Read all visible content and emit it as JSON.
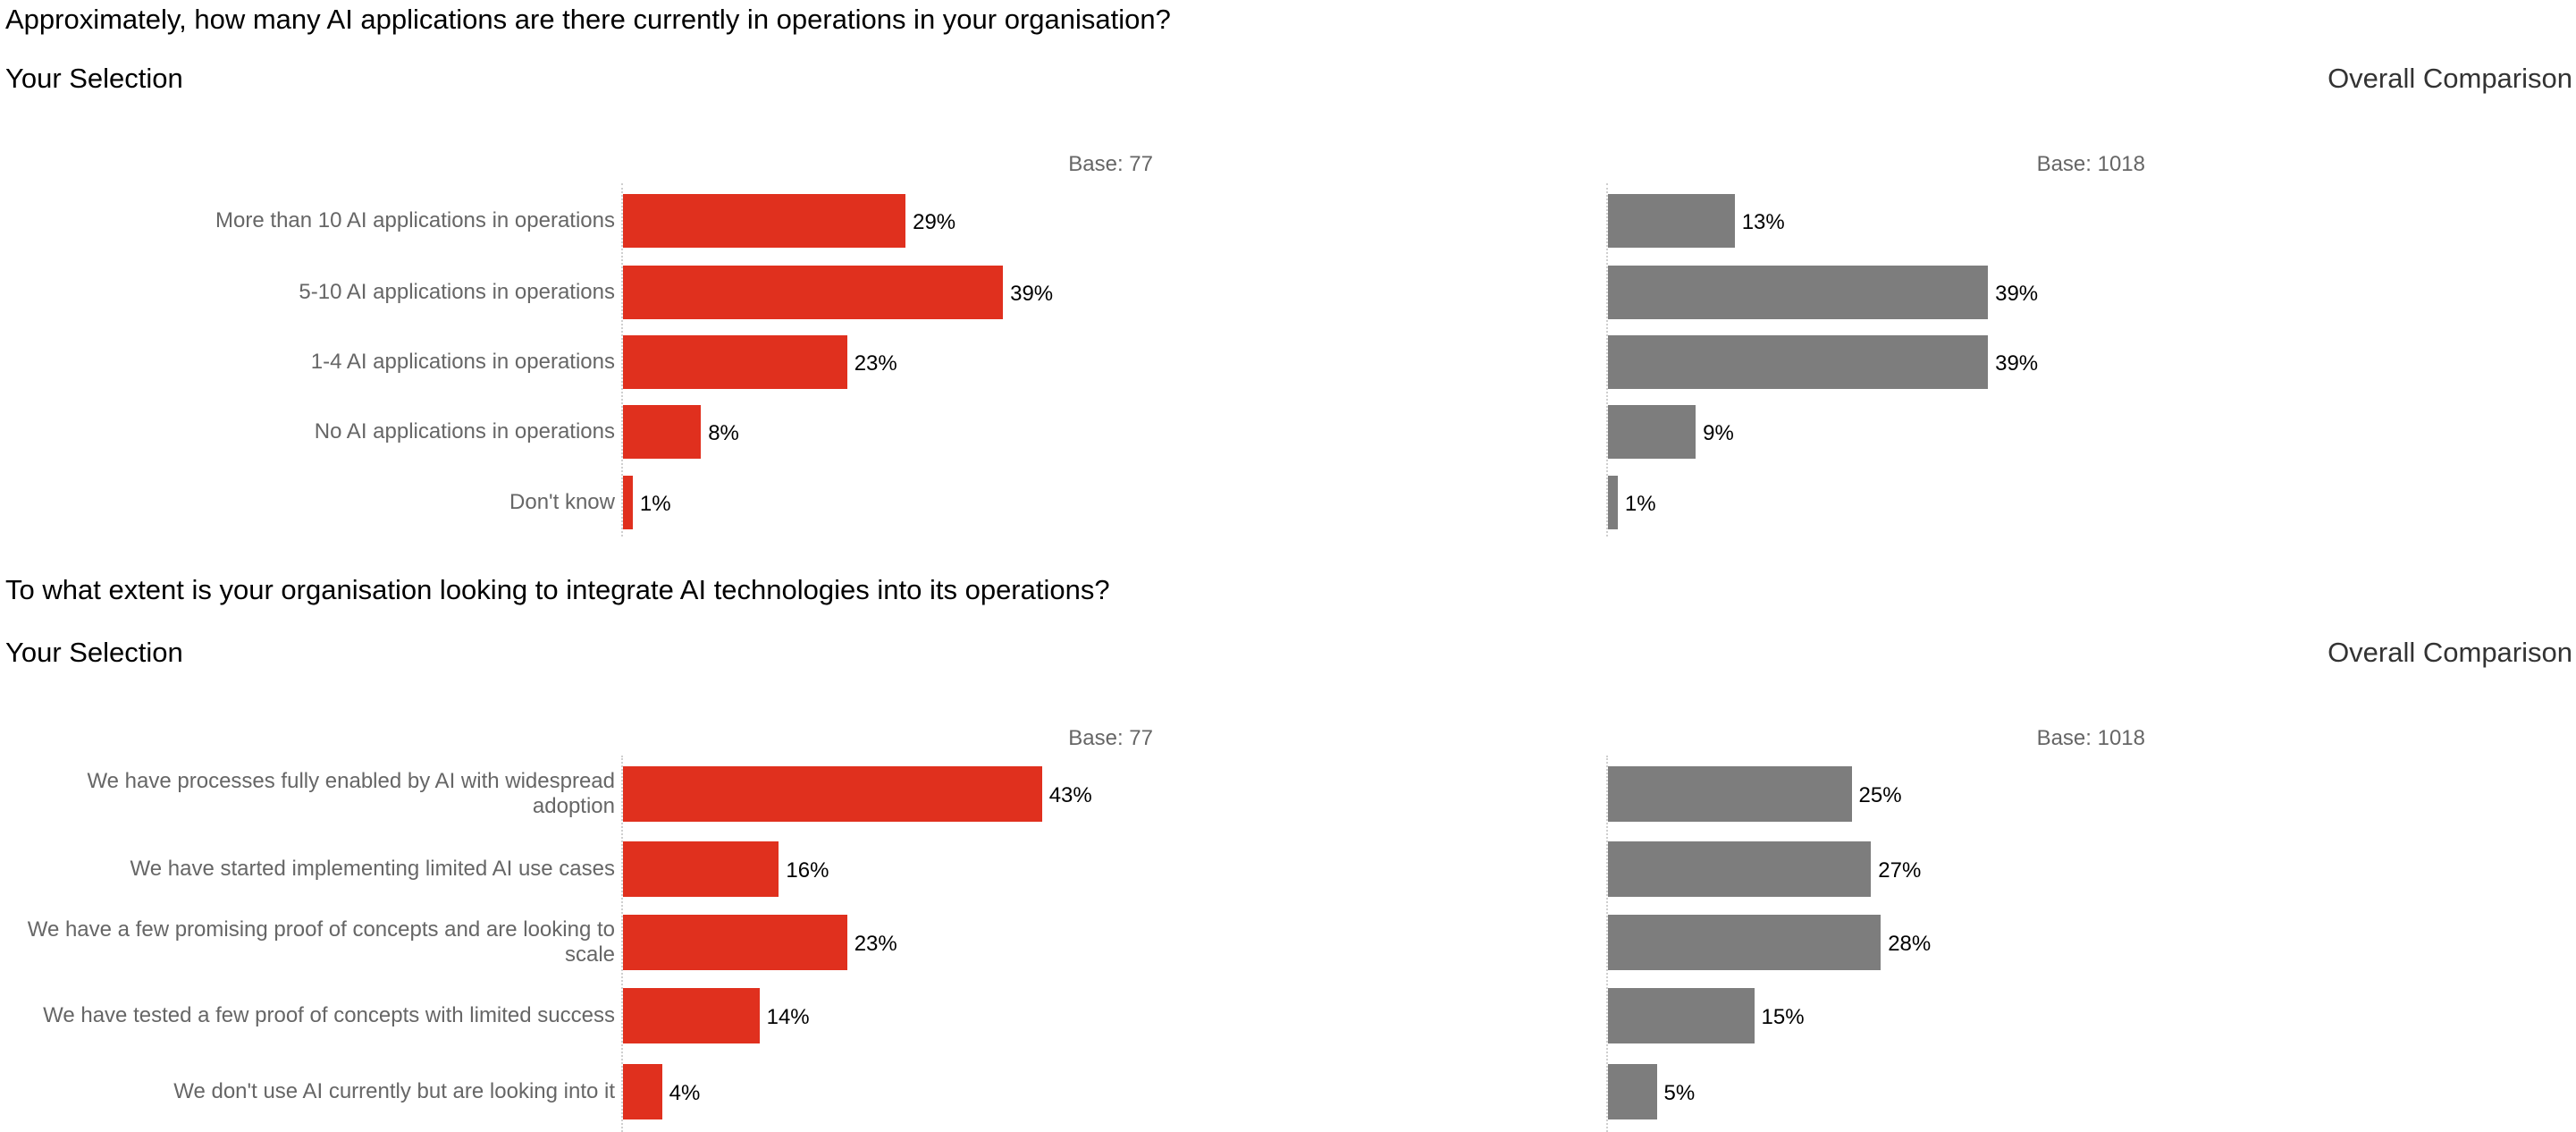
{
  "colors": {
    "selection": "#e0301e",
    "comparison": "#7d7d7d"
  },
  "chart_data": [
    {
      "type": "bar",
      "orientation": "horizontal",
      "title": "Approximately, how many AI applications are there currently in operations in your organisation?",
      "panel_titles": {
        "selection": "Your Selection",
        "comparison": "Overall Comparison"
      },
      "base": {
        "selection": "Base: 77",
        "comparison": "Base: 1018"
      },
      "categories": [
        "More than 10 AI applications in operations",
        "5-10 AI applications in operations",
        "1-4 AI applications in operations",
        "No AI applications in operations",
        "Don't know"
      ],
      "series": [
        {
          "name": "Your Selection",
          "values": [
            29,
            39,
            23,
            8,
            1
          ],
          "labels": [
            "29%",
            "39%",
            "23%",
            "8%",
            "1%"
          ]
        },
        {
          "name": "Overall Comparison",
          "values": [
            13,
            39,
            39,
            9,
            1
          ],
          "labels": [
            "13%",
            "39%",
            "39%",
            "9%",
            "1%"
          ]
        }
      ],
      "unit": "%",
      "xlim": [
        0,
        50
      ],
      "grid": false
    },
    {
      "type": "bar",
      "orientation": "horizontal",
      "title": "To what extent is your organisation looking to integrate AI technologies into its operations?",
      "panel_titles": {
        "selection": "Your Selection",
        "comparison": "Overall Comparison"
      },
      "base": {
        "selection": "Base: 77",
        "comparison": "Base: 1018"
      },
      "categories": [
        "We have processes fully enabled by AI with widespread adoption",
        "We have started implementing limited AI use cases",
        "We have a few promising proof of concepts and are looking to scale",
        "We have tested a few proof of concepts with limited success",
        "We don't use AI currently but are looking into it"
      ],
      "series": [
        {
          "name": "Your Selection",
          "values": [
            43,
            16,
            23,
            14,
            4
          ],
          "labels": [
            "43%",
            "16%",
            "23%",
            "14%",
            "4%"
          ]
        },
        {
          "name": "Overall Comparison",
          "values": [
            25,
            27,
            28,
            15,
            5
          ],
          "labels": [
            "25%",
            "27%",
            "28%",
            "15%",
            "5%"
          ]
        }
      ],
      "unit": "%",
      "xlim": [
        0,
        50
      ],
      "grid": false
    }
  ]
}
